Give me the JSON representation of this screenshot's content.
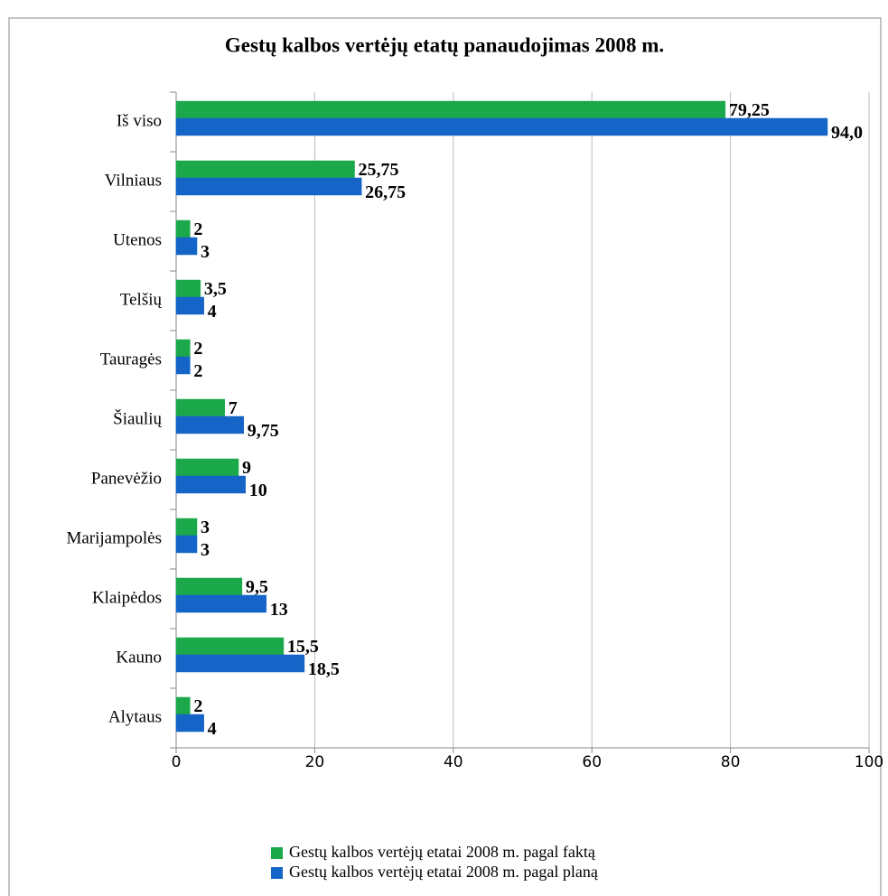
{
  "chart_data": {
    "type": "hbar",
    "title": "Gestų kalbos vertėjų etatų panaudojimas 2008 m.",
    "categories": [
      "Iš viso",
      "Vilniaus",
      "Utenos",
      "Telšių",
      "Tauragės",
      "Šiaulių",
      "Panevėžio",
      "Marijampolės",
      "Klaipėdos",
      "Kauno",
      "Alytaus"
    ],
    "series": [
      {
        "name": "Gestų kalbos vertėjų etatai 2008 m. pagal faktą",
        "color": "#1aa84a",
        "values": [
          79.25,
          25.75,
          2,
          3.5,
          2,
          7,
          9,
          3,
          9.5,
          15.5,
          2
        ],
        "value_labels": [
          "79,25",
          "25,75",
          "2",
          "3,5",
          "2",
          "7",
          "9",
          "3",
          "9,5",
          "15,5",
          "2"
        ]
      },
      {
        "name": "Gestų kalbos vertėjų etatai 2008 m. pagal planą",
        "color": "#1565c8",
        "values": [
          94,
          26.75,
          3,
          4,
          2,
          9.75,
          10,
          3,
          13,
          18.5,
          4
        ],
        "value_labels": [
          "94,0",
          "26,75",
          "3",
          "4",
          "2",
          "9,75",
          "10",
          "3",
          "13",
          "18,5",
          "4"
        ]
      }
    ],
    "xlim": [
      0,
      100
    ],
    "xticks": [
      0,
      20,
      40,
      60,
      80,
      100
    ],
    "grid": true,
    "legend": "bottom"
  }
}
